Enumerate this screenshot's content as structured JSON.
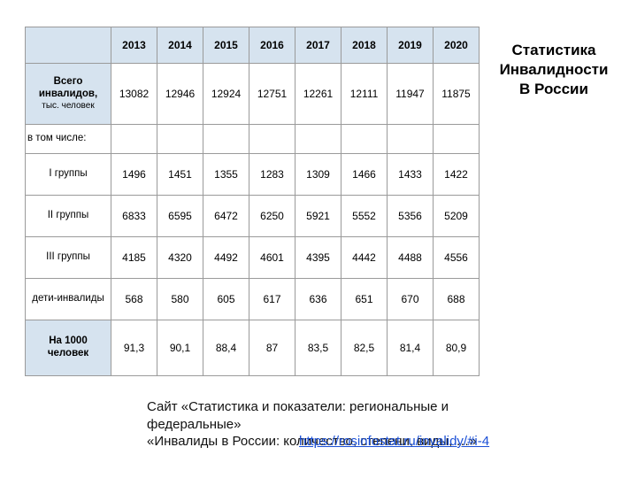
{
  "table": {
    "header_bg": "#d6e3ef",
    "border_color": "#9a9a9a",
    "years": [
      "2013",
      "2014",
      "2015",
      "2016",
      "2017",
      "2018",
      "2019",
      "2020"
    ],
    "rows": [
      {
        "key": "total",
        "label_main": "Всего инвалидов,",
        "label_sub": "тыс. человек",
        "strong": true,
        "tall_bg": true,
        "row_class": "h-total",
        "vals": [
          "13082",
          "12946",
          "12924",
          "12751",
          "12261",
          "12111",
          "11947",
          "11875"
        ]
      },
      {
        "key": "subhead",
        "label_main": "в том числе:",
        "is_subhead": true,
        "row_class": "h-sub"
      },
      {
        "key": "g1",
        "label_main": "I группы",
        "row_class": "h-group",
        "vals": [
          "1496",
          "1451",
          "1355",
          "1283",
          "1309",
          "1466",
          "1433",
          "1422"
        ]
      },
      {
        "key": "g2",
        "label_main": "II группы",
        "row_class": "h-group",
        "vals": [
          "6833",
          "6595",
          "6472",
          "6250",
          "5921",
          "5552",
          "5356",
          "5209"
        ]
      },
      {
        "key": "g3",
        "label_main": "III группы",
        "row_class": "h-group",
        "vals": [
          "4185",
          "4320",
          "4492",
          "4601",
          "4395",
          "4442",
          "4488",
          "4556"
        ]
      },
      {
        "key": "kids",
        "label_main": "дети-инвалиды",
        "row_class": "h-group",
        "vals": [
          "568",
          "580",
          "605",
          "617",
          "636",
          "651",
          "670",
          "688"
        ]
      },
      {
        "key": "per1000",
        "label_main": "На 1000 человек",
        "strong": true,
        "tall_bg": true,
        "row_class": "h-per",
        "vals": [
          "91,3",
          "90,1",
          "88,4",
          "87",
          "83,5",
          "82,5",
          "81,4",
          "80,9"
        ]
      }
    ]
  },
  "side_title": {
    "line1": "Статистика",
    "line2": "Инвалидности",
    "line3": "В России"
  },
  "caption": {
    "line1": "Сайт «Статистика и показатели: региональные и федеральные»",
    "line2": "«Инвалиды в России: количество, степени, виды, …»"
  },
  "link_text": "https://rosinfostat.ru/invalidy/#i-4"
}
